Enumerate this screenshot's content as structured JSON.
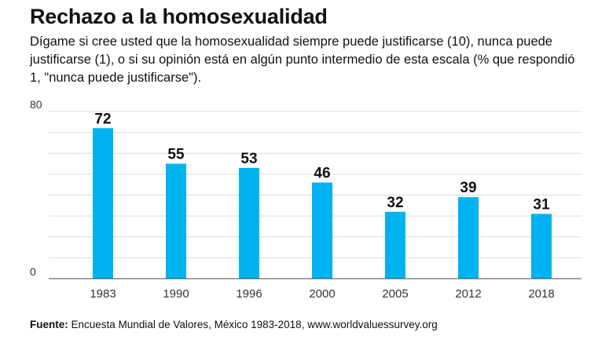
{
  "title": "Rechazo a la homosexualidad",
  "subtitle": "Dígame si cree usted que la homosexualidad siempre puede justificarse (10), nunca puede justificarse (1), o si su opinión está en algún punto intermedio de esta escala (% que respondió 1, \"nunca puede justificarse\").",
  "source": {
    "label": "Fuente:",
    "text": "Encuesta Mundial de Valores, México 1983-2018, www.worldvaluessurvey.org"
  },
  "colors": {
    "bar": "#00B3F0",
    "grid": "#dcdcdc",
    "axis": "#444444"
  },
  "chart_data": {
    "type": "bar",
    "categories": [
      "1983",
      "1990",
      "1996",
      "2000",
      "2005",
      "2012",
      "2018"
    ],
    "values": [
      72,
      55,
      53,
      46,
      32,
      39,
      31
    ],
    "ylim": [
      0,
      80
    ],
    "yticks": [
      "0",
      "80"
    ],
    "grid": true,
    "data_labels": true
  }
}
